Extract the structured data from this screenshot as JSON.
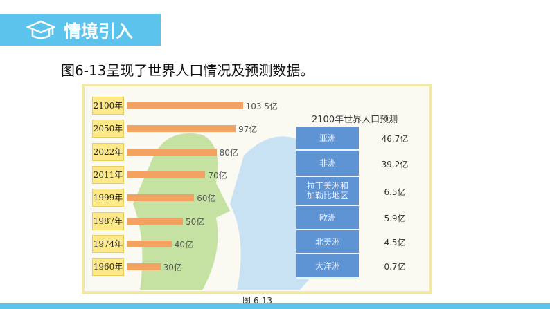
{
  "header": {
    "title": "情境引入"
  },
  "intro": "图6-13呈现了世界人口情况及预测数据。",
  "figure": {
    "categories": [
      "2100年",
      "2050年",
      "2022年",
      "2011年",
      "1999年",
      "1987年",
      "1974年",
      "1960年"
    ],
    "values": [
      103.5,
      97,
      80,
      70,
      60,
      50,
      40,
      30
    ],
    "value_labels": [
      "103.5亿",
      "97亿",
      "80亿",
      "70亿",
      "60亿",
      "50亿",
      "40亿",
      "30亿"
    ],
    "color": "#f4a261",
    "caption": "图 6-13"
  },
  "table": {
    "title": "2100年世界人口预测",
    "rows": [
      [
        "亚洲",
        "46.7亿"
      ],
      [
        "非洲",
        "39.2亿"
      ],
      [
        "拉丁美洲和加勒比地区",
        "6.5亿"
      ],
      [
        "欧洲",
        "5.9亿"
      ],
      [
        "北美洲",
        "4.5亿"
      ],
      [
        "大洋洲",
        "0.7亿"
      ]
    ]
  }
}
